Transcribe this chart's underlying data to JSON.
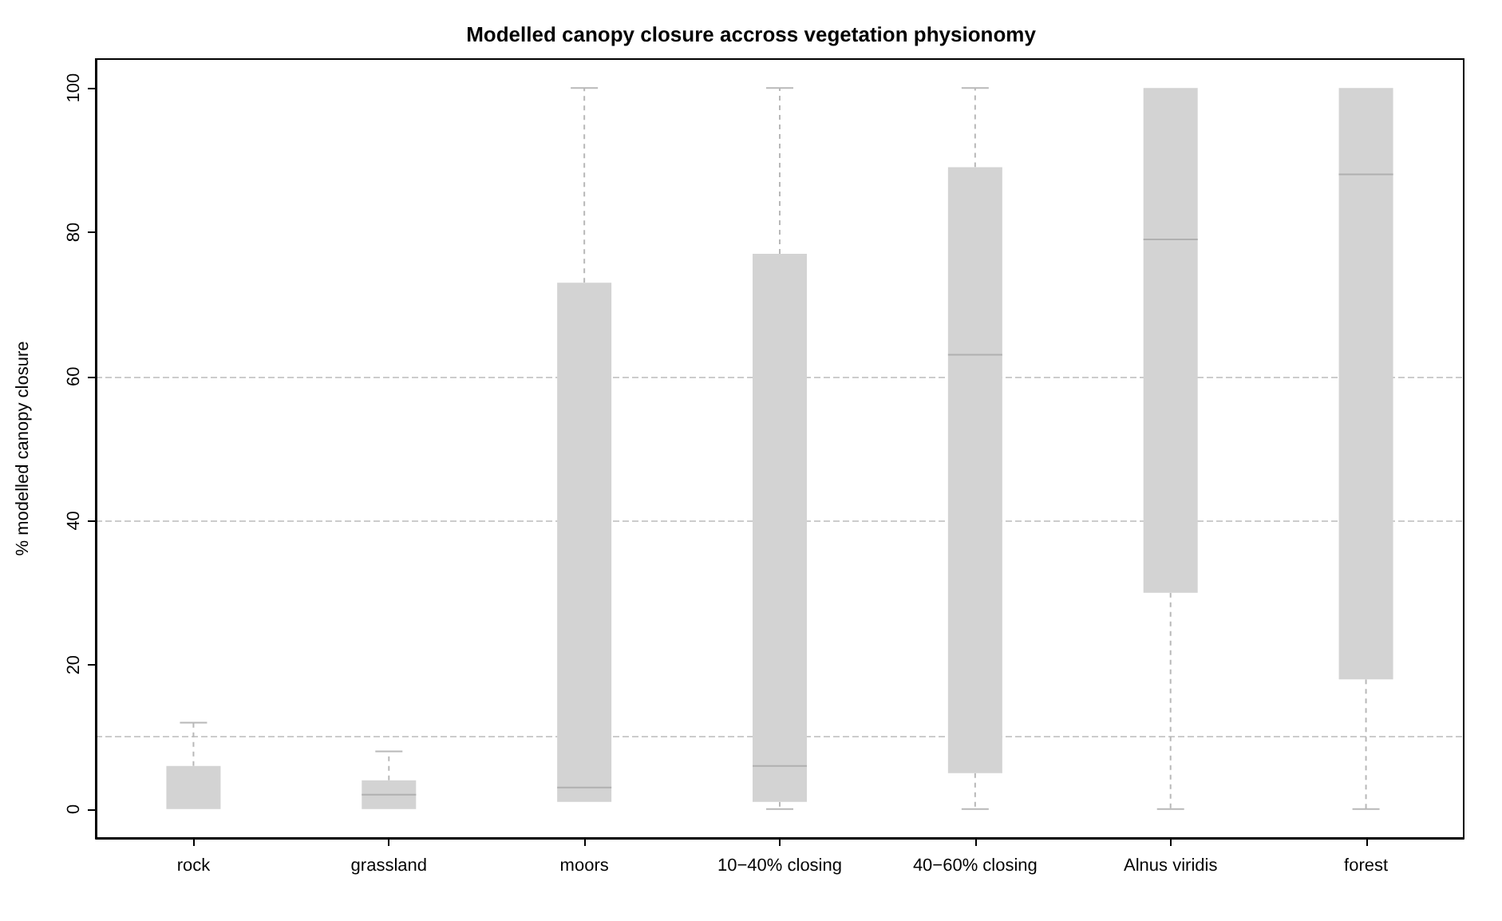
{
  "chart_data": {
    "type": "box",
    "title": "Modelled canopy closure accross vegetation physionomy",
    "ylabel": "% modelled canopy closure",
    "categories": [
      "rock",
      "grassland",
      "moors",
      "10−40% closing",
      "40−60% closing",
      "Alnus viridis",
      "forest"
    ],
    "series": [
      {
        "color": "#d3d3d3",
        "boxes": [
          {
            "low": 0,
            "q1": 0,
            "median": 0,
            "q3": 6,
            "high": 12
          },
          {
            "low": 0,
            "q1": 0,
            "median": 2,
            "q3": 4,
            "high": 8
          },
          {
            "low": 1,
            "q1": 1,
            "median": 3,
            "q3": 73,
            "high": 100
          },
          {
            "low": 0,
            "q1": 1,
            "median": 6,
            "q3": 77,
            "high": 100
          },
          {
            "low": 0,
            "q1": 5,
            "median": 63,
            "q3": 89,
            "high": 100
          },
          {
            "low": 0,
            "q1": 30,
            "median": 79,
            "q3": 100,
            "high": 100
          },
          {
            "low": 0,
            "q1": 18,
            "median": 88,
            "q3": 100,
            "high": 100
          }
        ]
      }
    ],
    "ylim": [
      -4,
      104
    ],
    "yticks": [
      0,
      20,
      40,
      60,
      80,
      100
    ],
    "ref_lines": [
      {
        "axis": "y",
        "value": 10,
        "color": "#cccccc",
        "line_style": "dashed"
      },
      {
        "axis": "y",
        "value": 40,
        "color": "#cccccc",
        "line_style": "dashed"
      },
      {
        "axis": "y",
        "value": 60,
        "color": "#cccccc",
        "line_style": "dashed"
      }
    ],
    "grid": false
  }
}
